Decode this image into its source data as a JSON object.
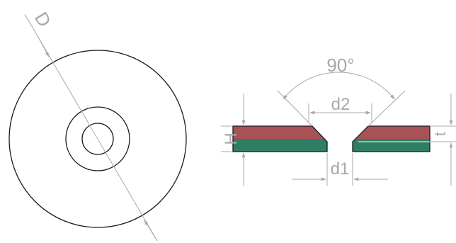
{
  "diagram": {
    "top_view": {
      "diameter_label": "D"
    },
    "section_view": {
      "angle_label": "90°",
      "countersink_label": "d2",
      "hole_label": "d1",
      "height_label": "H",
      "thickness_label": "t"
    },
    "colors": {
      "north_pole": "#a85256",
      "south_pole": "#2e7e66",
      "outline": "#1a1a1a",
      "dimension": "#a8a8a8"
    }
  }
}
